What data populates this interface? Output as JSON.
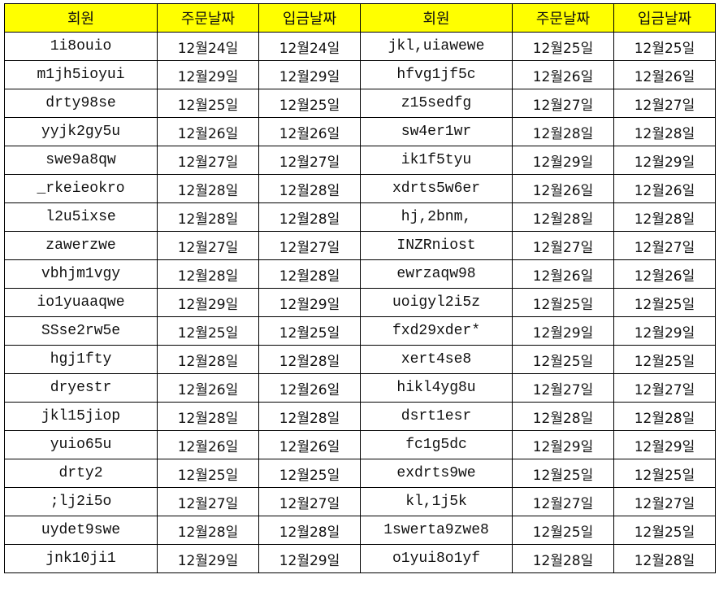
{
  "headers": [
    "회원",
    "주문날짜",
    "입금날짜",
    "회원",
    "주문날짜",
    "입금날짜"
  ],
  "header_color": "#ffff00",
  "rows": [
    [
      "1i8ouio",
      "12월24일",
      "12월24일",
      "jkl,uiawewe",
      "12월25일",
      "12월25일"
    ],
    [
      "m1jh5ioyui",
      "12월29일",
      "12월29일",
      "hfvg1jf5c",
      "12월26일",
      "12월26일"
    ],
    [
      "drty98se",
      "12월25일",
      "12월25일",
      "z15sedfg",
      "12월27일",
      "12월27일"
    ],
    [
      "yyjk2gy5u",
      "12월26일",
      "12월26일",
      "sw4er1wr",
      "12월28일",
      "12월28일"
    ],
    [
      "swe9a8qw",
      "12월27일",
      "12월27일",
      "ik1f5tyu",
      "12월29일",
      "12월29일"
    ],
    [
      "_rkeieokro",
      "12월28일",
      "12월28일",
      "xdrts5w6er",
      "12월26일",
      "12월26일"
    ],
    [
      "l2u5ixse",
      "12월28일",
      "12월28일",
      "hj,2bnm,",
      "12월28일",
      "12월28일"
    ],
    [
      "zawerzwe",
      "12월27일",
      "12월27일",
      "INZRniost",
      "12월27일",
      "12월27일"
    ],
    [
      "vbhjm1vgy",
      "12월28일",
      "12월28일",
      "ewrzaqw98",
      "12월26일",
      "12월26일"
    ],
    [
      "io1yuaaqwe",
      "12월29일",
      "12월29일",
      "uoigyl2i5z",
      "12월25일",
      "12월25일"
    ],
    [
      "SSse2rw5e",
      "12월25일",
      "12월25일",
      "fxd29xder*",
      "12월29일",
      "12월29일"
    ],
    [
      "hgj1fty",
      "12월28일",
      "12월28일",
      "xert4se8",
      "12월25일",
      "12월25일"
    ],
    [
      "dryestr",
      "12월26일",
      "12월26일",
      "hikl4yg8u",
      "12월27일",
      "12월27일"
    ],
    [
      "jkl15jiop",
      "12월28일",
      "12월28일",
      "dsrt1esr",
      "12월28일",
      "12월28일"
    ],
    [
      "yuio65u",
      "12월26일",
      "12월26일",
      "fc1g5dc",
      "12월29일",
      "12월29일"
    ],
    [
      "drty2",
      "12월25일",
      "12월25일",
      "exdrts9we",
      "12월25일",
      "12월25일"
    ],
    [
      ";lj2i5o",
      "12월27일",
      "12월27일",
      "kl,1j5k",
      "12월27일",
      "12월27일"
    ],
    [
      "uydet9swe",
      "12월28일",
      "12월28일",
      "1swerta9zwe8",
      "12월25일",
      "12월25일"
    ],
    [
      "jnk10ji1",
      "12월29일",
      "12월29일",
      "o1yui8o1yf",
      "12월28일",
      "12월28일"
    ]
  ]
}
